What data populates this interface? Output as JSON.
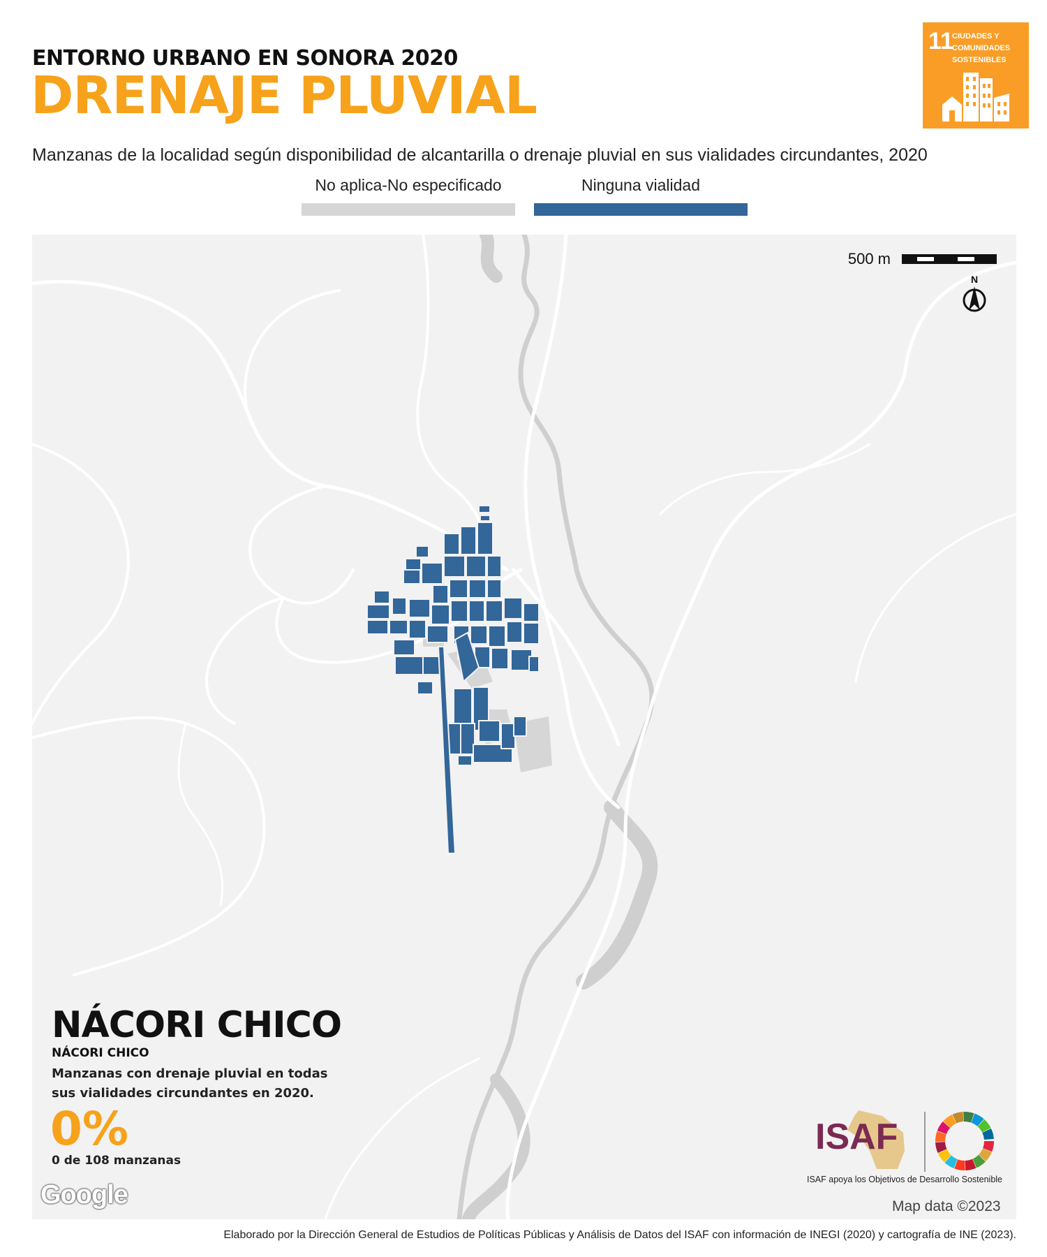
{
  "header": {
    "kicker": "ENTORNO URBANO EN SONORA 2020",
    "title": "DRENAJE PLUVIAL",
    "subtitle": "Manzanas de la localidad según disponibilidad de alcantarilla o drenaje pluvial en sus vialidades circundantes, 2020"
  },
  "sdg_badge": {
    "number": "11",
    "text": "CIUDADES Y COMUNIDADES SOSTENIBLES",
    "color": "#f99d26"
  },
  "legend": [
    {
      "label": "No aplica-No especificado",
      "color": "#d6d6d6"
    },
    {
      "label": "Ninguna vialidad",
      "color": "#336699"
    }
  ],
  "map": {
    "scale_label": "500 m",
    "north_label": "N",
    "background": "#f2f2f2",
    "road_color": "#ffffff",
    "river_color": "#cfcfcf",
    "block_color": "#336699"
  },
  "locality": {
    "name": "NÁCORI CHICO",
    "municipality": "NÁCORI CHICO",
    "kpi_label": "Manzanas con drenaje pluvial en todas sus vialidades circundantes en 2020.",
    "kpi_value": "0%",
    "kpi_count": "0 de 108 manzanas"
  },
  "attribution": {
    "google": "Google",
    "map_data": "Map data ©2023"
  },
  "isaf": {
    "logo_text": "ISAF",
    "caption": "ISAF apoya los Objetivos de Desarrollo Sostenible"
  },
  "footer": "Elaborado por la Dirección General de Estudios de Políticas Públicas y Análisis de Datos del ISAF con información de INEGI (2020) y cartografía de INE (2023)."
}
